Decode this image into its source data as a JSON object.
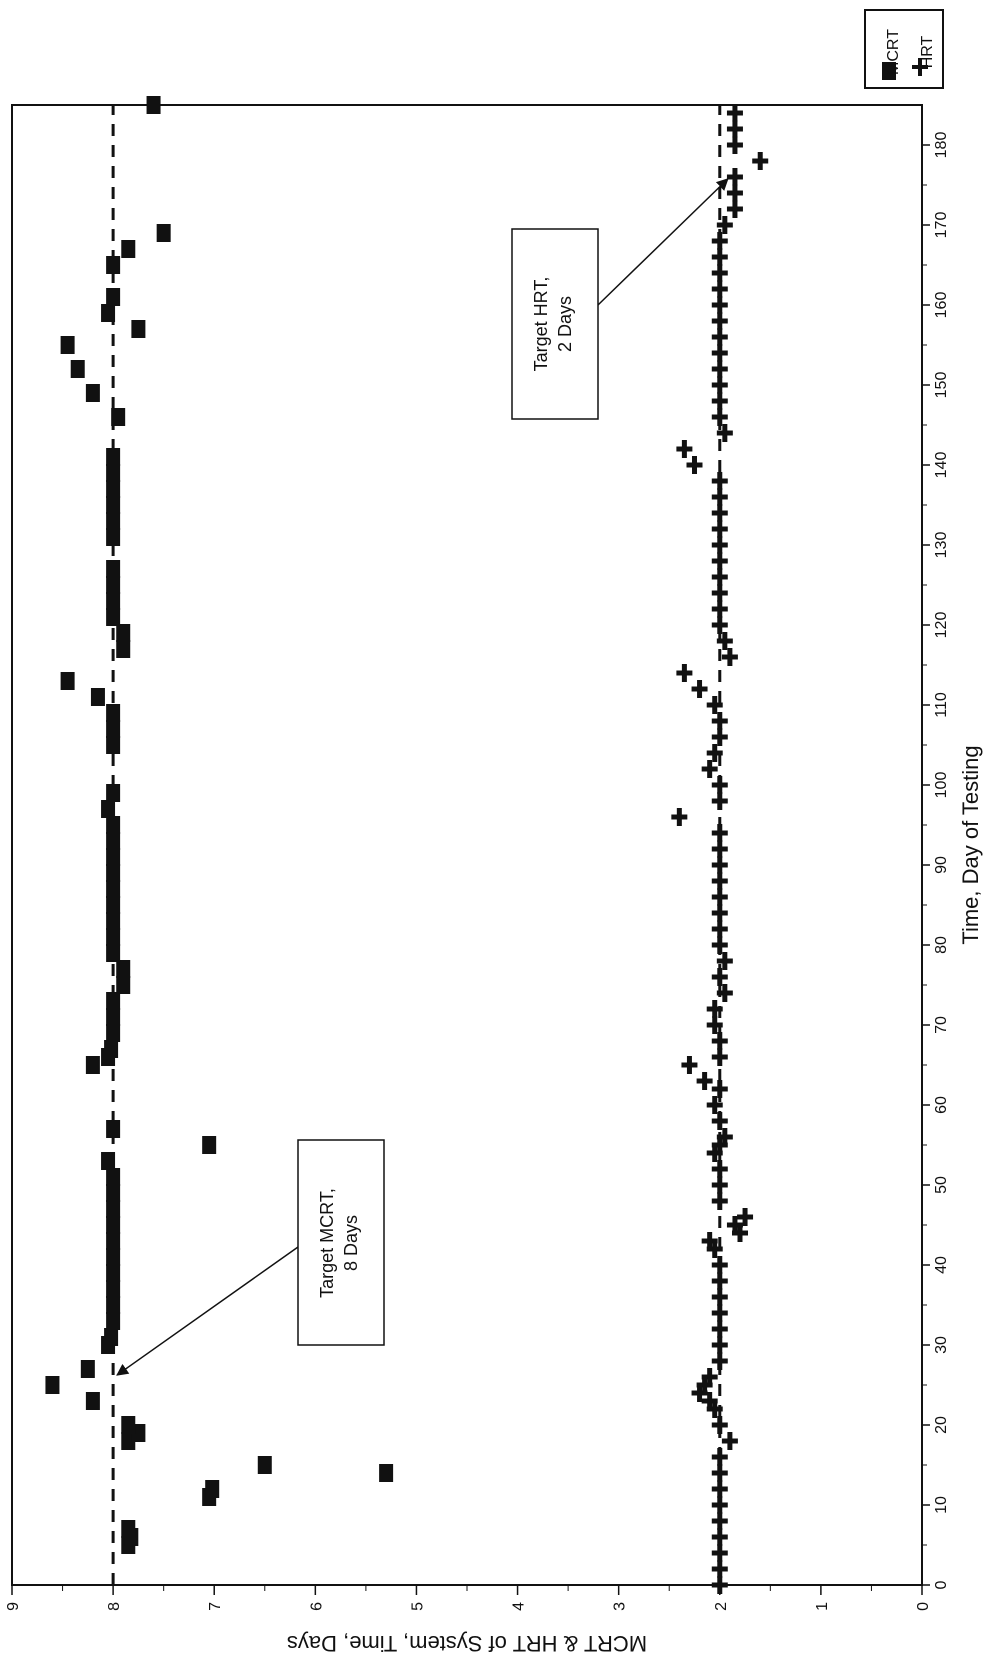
{
  "chart_data": {
    "type": "scatter",
    "orientation": "rotated-90-clockwise",
    "title": "",
    "xlabel": "Time, Day of Testing",
    "ylabel": "MCRT & HRT of System, Time, Days",
    "xlim": [
      0,
      185
    ],
    "ylim": [
      0,
      9
    ],
    "xticks": [
      "0",
      "10",
      "20",
      "30",
      "40",
      "50",
      "60",
      "70",
      "80",
      "90",
      "100",
      "110",
      "120",
      "130",
      "140",
      "150",
      "160",
      "170",
      "180"
    ],
    "yticks": [
      "0",
      "1",
      "2",
      "3",
      "4",
      "5",
      "6",
      "7",
      "8",
      "9"
    ],
    "grid": false,
    "legend_placement": "top-right",
    "colors": {
      "mark": "#111111"
    },
    "series": [
      {
        "name": "MCRT",
        "marker": "square",
        "points": [
          [
            5,
            7.85
          ],
          [
            6,
            7.82
          ],
          [
            7,
            7.85
          ],
          [
            11,
            7.05
          ],
          [
            12,
            7.02
          ],
          [
            15,
            6.5
          ],
          [
            14,
            5.3
          ],
          [
            18,
            7.85
          ],
          [
            19,
            7.75
          ],
          [
            20,
            7.85
          ],
          [
            23,
            8.2
          ],
          [
            25,
            8.6
          ],
          [
            27,
            8.25
          ],
          [
            30,
            8.05
          ],
          [
            31,
            8.02
          ],
          [
            33,
            8.0
          ],
          [
            35,
            8.0
          ],
          [
            37,
            8.0
          ],
          [
            39,
            8.0
          ],
          [
            41,
            8.0
          ],
          [
            43,
            8.0
          ],
          [
            45,
            8.0
          ],
          [
            47,
            8.0
          ],
          [
            49,
            8.0
          ],
          [
            51,
            8.0
          ],
          [
            53,
            8.05
          ],
          [
            55,
            7.05
          ],
          [
            57,
            8.0
          ],
          [
            65,
            8.2
          ],
          [
            66,
            8.05
          ],
          [
            67,
            8.02
          ],
          [
            69,
            8.0
          ],
          [
            71,
            8.0
          ],
          [
            73,
            8.0
          ],
          [
            75,
            7.9
          ],
          [
            77,
            7.9
          ],
          [
            79,
            8.0
          ],
          [
            81,
            8.0
          ],
          [
            83,
            8.0
          ],
          [
            85,
            8.0
          ],
          [
            87,
            8.0
          ],
          [
            89,
            8.0
          ],
          [
            91,
            8.0
          ],
          [
            93,
            8.0
          ],
          [
            95,
            8.0
          ],
          [
            97,
            8.05
          ],
          [
            99,
            8.0
          ],
          [
            105,
            8.0
          ],
          [
            107,
            8.0
          ],
          [
            109,
            8.0
          ],
          [
            111,
            8.15
          ],
          [
            113,
            8.45
          ],
          [
            117,
            7.9
          ],
          [
            119,
            7.9
          ],
          [
            121,
            8.0
          ],
          [
            123,
            8.0
          ],
          [
            125,
            8.0
          ],
          [
            127,
            8.0
          ],
          [
            131,
            8.0
          ],
          [
            133,
            8.0
          ],
          [
            135,
            8.0
          ],
          [
            137,
            8.0
          ],
          [
            139,
            8.0
          ],
          [
            141,
            8.0
          ],
          [
            146,
            7.95
          ],
          [
            149,
            8.2
          ],
          [
            152,
            8.35
          ],
          [
            155,
            8.45
          ],
          [
            157,
            7.75
          ],
          [
            159,
            8.05
          ],
          [
            161,
            8.0
          ],
          [
            165,
            8.0
          ],
          [
            167,
            7.85
          ],
          [
            169,
            7.5
          ],
          [
            185,
            7.6
          ]
        ]
      },
      {
        "name": "HRT",
        "marker": "plus",
        "points": [
          [
            0,
            2.0
          ],
          [
            2,
            2.0
          ],
          [
            4,
            2.0
          ],
          [
            6,
            2.0
          ],
          [
            8,
            2.0
          ],
          [
            10,
            2.0
          ],
          [
            12,
            2.0
          ],
          [
            14,
            2.0
          ],
          [
            16,
            2.0
          ],
          [
            18,
            1.9
          ],
          [
            20,
            2.0
          ],
          [
            22,
            2.05
          ],
          [
            23,
            2.1
          ],
          [
            24,
            2.2
          ],
          [
            25,
            2.15
          ],
          [
            26,
            2.1
          ],
          [
            28,
            2.0
          ],
          [
            30,
            2.0
          ],
          [
            32,
            2.0
          ],
          [
            34,
            2.0
          ],
          [
            36,
            2.0
          ],
          [
            38,
            2.0
          ],
          [
            40,
            2.0
          ],
          [
            42,
            2.05
          ],
          [
            43,
            2.1
          ],
          [
            44,
            1.8
          ],
          [
            45,
            1.85
          ],
          [
            46,
            1.75
          ],
          [
            48,
            2.0
          ],
          [
            50,
            2.0
          ],
          [
            52,
            2.0
          ],
          [
            54,
            2.05
          ],
          [
            55,
            2.0
          ],
          [
            56,
            1.95
          ],
          [
            58,
            2.0
          ],
          [
            60,
            2.05
          ],
          [
            62,
            2.0
          ],
          [
            63,
            2.15
          ],
          [
            65,
            2.3
          ],
          [
            66,
            2.0
          ],
          [
            68,
            2.0
          ],
          [
            70,
            2.05
          ],
          [
            72,
            2.05
          ],
          [
            74,
            1.95
          ],
          [
            76,
            2.0
          ],
          [
            78,
            1.95
          ],
          [
            80,
            2.0
          ],
          [
            82,
            2.0
          ],
          [
            84,
            2.0
          ],
          [
            86,
            2.0
          ],
          [
            88,
            2.0
          ],
          [
            90,
            2.0
          ],
          [
            92,
            2.0
          ],
          [
            94,
            2.0
          ],
          [
            96,
            2.4
          ],
          [
            98,
            2.0
          ],
          [
            100,
            2.0
          ],
          [
            102,
            2.1
          ],
          [
            104,
            2.05
          ],
          [
            106,
            2.0
          ],
          [
            108,
            2.0
          ],
          [
            110,
            2.05
          ],
          [
            112,
            2.2
          ],
          [
            114,
            2.35
          ],
          [
            116,
            1.9
          ],
          [
            118,
            1.95
          ],
          [
            120,
            2.0
          ],
          [
            122,
            2.0
          ],
          [
            124,
            2.0
          ],
          [
            126,
            2.0
          ],
          [
            128,
            2.0
          ],
          [
            130,
            2.0
          ],
          [
            132,
            2.0
          ],
          [
            134,
            2.0
          ],
          [
            136,
            2.0
          ],
          [
            138,
            2.0
          ],
          [
            140,
            2.25
          ],
          [
            142,
            2.35
          ],
          [
            144,
            1.95
          ],
          [
            146,
            2.0
          ],
          [
            148,
            2.0
          ],
          [
            150,
            2.0
          ],
          [
            152,
            2.0
          ],
          [
            154,
            2.0
          ],
          [
            156,
            2.0
          ],
          [
            158,
            2.0
          ],
          [
            160,
            2.0
          ],
          [
            162,
            2.0
          ],
          [
            164,
            2.0
          ],
          [
            166,
            2.0
          ],
          [
            168,
            2.0
          ],
          [
            170,
            1.95
          ],
          [
            172,
            1.85
          ],
          [
            174,
            1.85
          ],
          [
            176,
            1.85
          ],
          [
            178,
            1.6
          ],
          [
            180,
            1.85
          ],
          [
            182,
            1.85
          ],
          [
            184,
            1.85
          ]
        ]
      }
    ],
    "reference_lines": [
      {
        "value": 8,
        "style": "dashed"
      },
      {
        "value": 2,
        "style": "dashed"
      }
    ],
    "annotations": [
      {
        "lines": [
          "Target MCRT,",
          "8 Days"
        ],
        "arrow_to": [
          26,
          8
        ]
      },
      {
        "lines": [
          "Target HRT,",
          "2 Days"
        ],
        "arrow_to": [
          176,
          2
        ]
      }
    ]
  }
}
